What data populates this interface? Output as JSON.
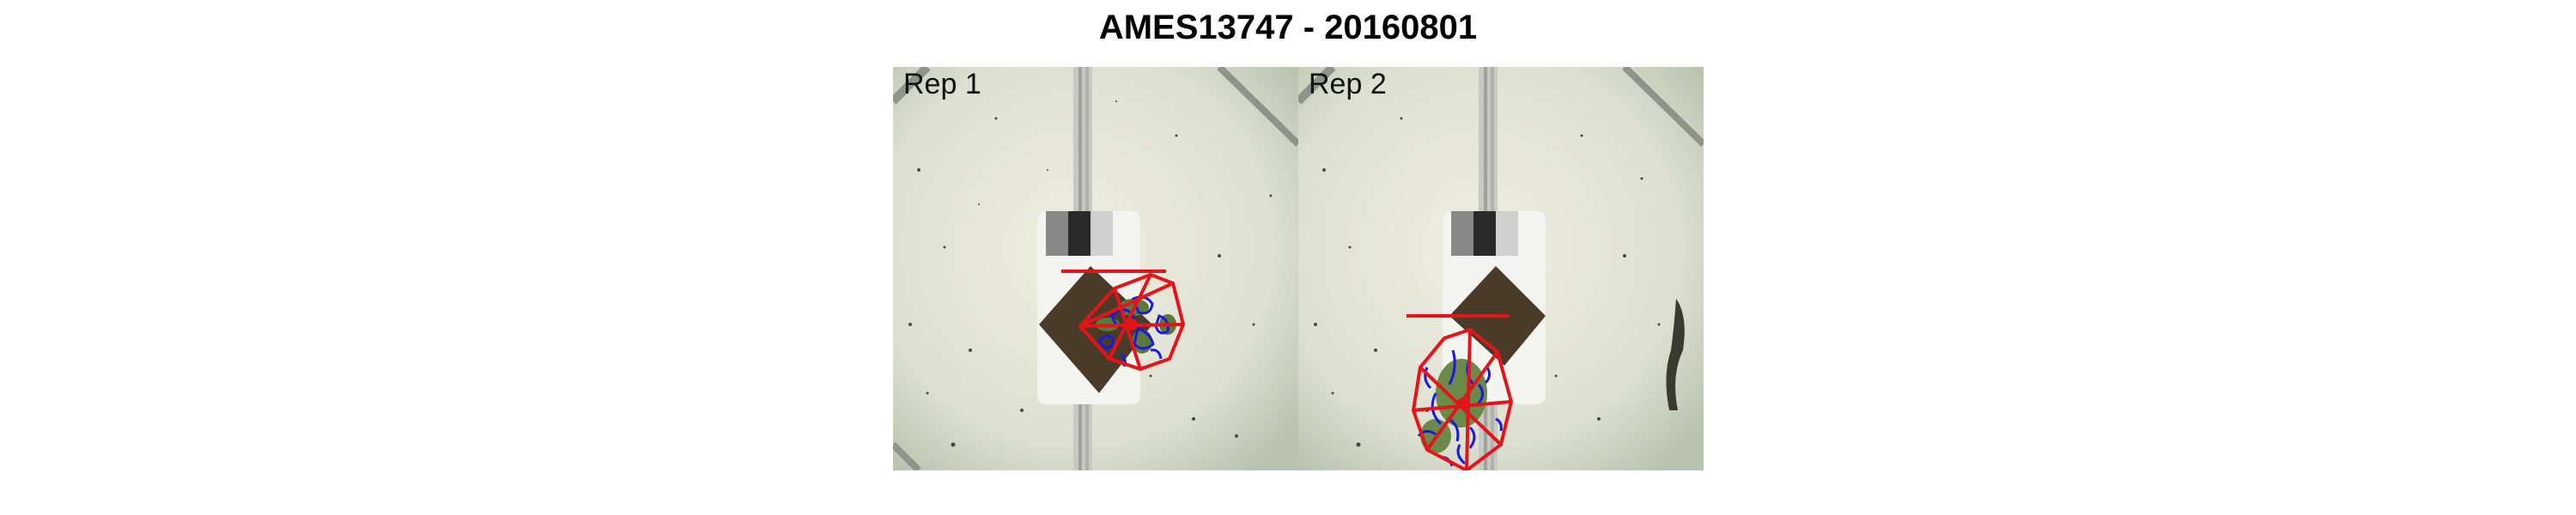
{
  "title": "AMES13747 - 20160801",
  "panels": [
    {
      "label": "Rep 1"
    },
    {
      "label": "Rep 2"
    }
  ],
  "colors": {
    "background": "#dfe1d2",
    "hull_outline": "#e3151a",
    "leaf_contour": "#1a1adf",
    "soil": "#4a3a28",
    "plant": "#5a7a3a"
  }
}
